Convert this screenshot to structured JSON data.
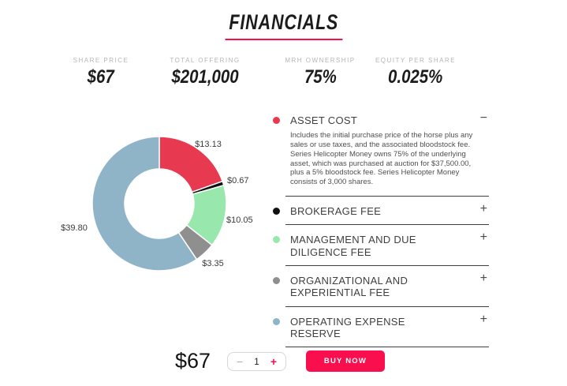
{
  "page": {
    "title": "FINANCIALS"
  },
  "colors": {
    "accent": "#fa0f4e",
    "underline": "#f8104d",
    "divider": "#3d3d3d"
  },
  "stats": [
    {
      "label": "SHARE PRICE",
      "value": "$67"
    },
    {
      "label": "TOTAL OFFERING",
      "value": "$201,000"
    },
    {
      "label": "MRH OWNERSHIP",
      "value": "75%"
    },
    {
      "label": "EQUITY PER SHARE",
      "value": "0.025%"
    }
  ],
  "chart_data": {
    "type": "pie",
    "donut": true,
    "total": 67,
    "categories": [
      "Asset Cost",
      "Brokerage Fee",
      "Management and Due Diligence Fee",
      "Organizational and Experiential Fee",
      "Operating Expense Reserve"
    ],
    "values": [
      13.13,
      0.67,
      10.05,
      3.35,
      39.8
    ],
    "labels": [
      "$13.13",
      "$0.67",
      "$10.05",
      "$3.35",
      "$39.80"
    ],
    "colors": [
      "#e73950",
      "#111111",
      "#98e7ac",
      "#8f8f8f",
      "#8fb4c8"
    ],
    "start_angle_deg": 0,
    "direction": "clockwise",
    "legend_position": "right-accordion"
  },
  "accordion": {
    "items": [
      {
        "dot_color": "#e73950",
        "title": "ASSET COST",
        "toggle": "−",
        "expanded": true,
        "body": "Includes the initial purchase price of the horse plus any sales or use taxes, and the associated bloodstock fee. Series Helicopter Money owns 75% of the underlying asset, which was purchased at auction for $37,500.00, plus a 5% bloodstock fee. Series Helicopter Money consists of 3,000 shares."
      },
      {
        "dot_color": "#111111",
        "title": "BROKERAGE FEE",
        "toggle": "+",
        "expanded": false
      },
      {
        "dot_color": "#98e7ac",
        "title": "MANAGEMENT AND DUE DILIGENCE FEE",
        "toggle": "+",
        "expanded": false
      },
      {
        "dot_color": "#8f8f8f",
        "title": "ORGANIZATIONAL AND EXPERIENTIAL FEE",
        "toggle": "+",
        "expanded": false
      },
      {
        "dot_color": "#8fb4c8",
        "title": "OPERATING EXPENSE RESERVE",
        "toggle": "+",
        "expanded": false
      }
    ]
  },
  "purchase": {
    "price": "$67",
    "quantity": "1",
    "minus_label": "−",
    "plus_label": "+",
    "buy_label": "BUY NOW"
  }
}
